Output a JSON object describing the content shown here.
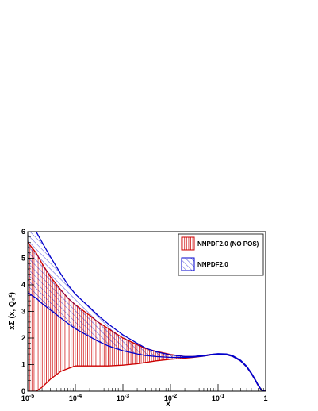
{
  "chart_data": {
    "type": "area",
    "title": "",
    "xlabel": "x",
    "ylabel": "xΣ (x, Q₀²)",
    "xscale": "log",
    "xlim": [
      1e-05,
      1
    ],
    "ylim": [
      0,
      6
    ],
    "x_tick_labels": [
      {
        "base": "10",
        "exp": "-5",
        "value": 1e-05
      },
      {
        "base": "10",
        "exp": "-4",
        "value": 0.0001
      },
      {
        "base": "10",
        "exp": "-3",
        "value": 0.001
      },
      {
        "base": "10",
        "exp": "-2",
        "value": 0.01
      },
      {
        "base": "10",
        "exp": "-1",
        "value": 0.1
      },
      {
        "base": "1",
        "exp": "",
        "value": 1
      }
    ],
    "y_ticks": [
      0,
      1,
      2,
      3,
      4,
      5,
      6
    ],
    "y_tick_labels": [
      "0",
      "1",
      "2",
      "3",
      "4",
      "5",
      "6"
    ],
    "legend_placement": "top-right",
    "grid": false,
    "series": [
      {
        "name": "NNPDF2.0 (NO POS)",
        "color": "#cc0000",
        "hatch": "vertical",
        "x": [
          1e-05,
          1.5e-05,
          2e-05,
          3e-05,
          5e-05,
          7e-05,
          0.0001,
          0.0002,
          0.0003,
          0.0005,
          0.001,
          0.002,
          0.003,
          0.005,
          0.01,
          0.02,
          0.03,
          0.05,
          0.07,
          0.1,
          0.15,
          0.2,
          0.3,
          0.4,
          0.5,
          0.6,
          0.7,
          0.8,
          0.9,
          1.0
        ],
        "upper": [
          5.6,
          5.2,
          4.8,
          4.3,
          3.8,
          3.5,
          3.25,
          2.85,
          2.6,
          2.35,
          2.0,
          1.75,
          1.6,
          1.5,
          1.38,
          1.3,
          1.3,
          1.34,
          1.38,
          1.4,
          1.39,
          1.33,
          1.15,
          0.93,
          0.68,
          0.44,
          0.22,
          0.07,
          0.01,
          0.0
        ],
        "lower": [
          0.0,
          0.0,
          0.15,
          0.45,
          0.75,
          0.85,
          0.95,
          0.95,
          0.95,
          0.95,
          0.98,
          1.03,
          1.08,
          1.14,
          1.2,
          1.24,
          1.27,
          1.32,
          1.36,
          1.38,
          1.37,
          1.31,
          1.13,
          0.91,
          0.66,
          0.42,
          0.2,
          0.06,
          0.005,
          0.0
        ]
      },
      {
        "name": "NNPDF2.0",
        "color": "#0000cc",
        "hatch": "diagonal",
        "x": [
          1e-05,
          1.5e-05,
          2e-05,
          3e-05,
          5e-05,
          7e-05,
          0.0001,
          0.0002,
          0.0003,
          0.0005,
          0.001,
          0.002,
          0.003,
          0.005,
          0.01,
          0.02,
          0.03,
          0.05,
          0.07,
          0.1,
          0.15,
          0.2,
          0.3,
          0.4,
          0.5,
          0.6,
          0.7,
          0.8,
          0.9,
          1.0
        ],
        "upper": [
          6.0,
          6.0,
          5.6,
          5.05,
          4.4,
          4.0,
          3.65,
          3.15,
          2.85,
          2.52,
          2.12,
          1.8,
          1.62,
          1.48,
          1.36,
          1.3,
          1.3,
          1.34,
          1.38,
          1.41,
          1.4,
          1.34,
          1.16,
          0.94,
          0.69,
          0.45,
          0.23,
          0.075,
          0.012,
          0.0
        ],
        "lower": [
          3.7,
          3.5,
          3.3,
          3.05,
          2.75,
          2.55,
          2.35,
          2.05,
          1.88,
          1.7,
          1.52,
          1.4,
          1.34,
          1.3,
          1.27,
          1.27,
          1.28,
          1.32,
          1.36,
          1.38,
          1.37,
          1.31,
          1.13,
          0.91,
          0.66,
          0.42,
          0.2,
          0.06,
          0.006,
          0.0
        ]
      }
    ]
  }
}
